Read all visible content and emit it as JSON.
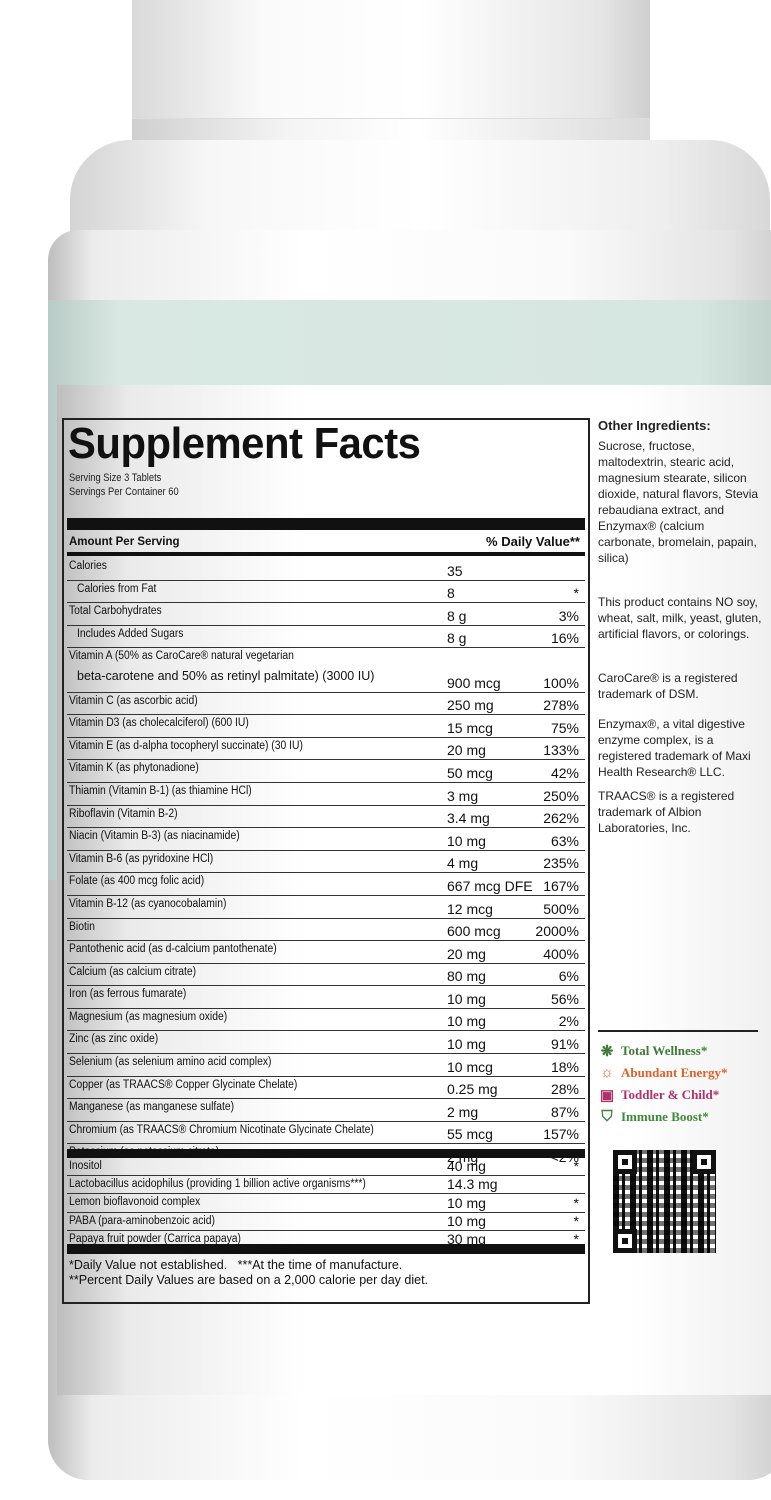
{
  "facts": {
    "title": "Supplement Facts",
    "serving_size": "Serving Size 3 Tablets",
    "servings_per_container": "Servings Per Container 60",
    "amount_header": "Amount Per Serving",
    "dv_header": "% Daily Value**",
    "rows": [
      {
        "name": "Calories",
        "amount": "35",
        "dv": ""
      },
      {
        "name": "Calories from Fat",
        "amount": "8",
        "dv": "*"
      },
      {
        "name": "Total Carbohydrates",
        "amount": "8 g",
        "dv": "3%"
      },
      {
        "name": "Includes Added Sugars",
        "amount": "8 g",
        "dv": "16%"
      },
      {
        "name": "Vitamin A (50% as CaroCare® natural vegetarian",
        "name2": "beta-carotene and 50% as retinyl palmitate) (3000 IU)",
        "amount": "900 mcg",
        "dv": "100%"
      },
      {
        "name": "Vitamin C (as ascorbic acid)",
        "amount": "250 mg",
        "dv": "278%"
      },
      {
        "name": "Vitamin D3 (as cholecalciferol) (600 IU)",
        "amount": "15 mcg",
        "dv": "75%"
      },
      {
        "name": "Vitamin E (as d-alpha tocopheryl succinate) (30 IU)",
        "amount": "20 mg",
        "dv": "133%"
      },
      {
        "name": "Vitamin K (as phytonadione)",
        "amount": "50 mcg",
        "dv": "42%"
      },
      {
        "name": "Thiamin (Vitamin B-1) (as thiamine HCl)",
        "amount": "3 mg",
        "dv": "250%"
      },
      {
        "name": "Riboflavin (Vitamin B-2)",
        "amount": "3.4 mg",
        "dv": "262%"
      },
      {
        "name": "Niacin (Vitamin B-3) (as niacinamide)",
        "amount": "10 mg",
        "dv": "63%"
      },
      {
        "name": "Vitamin B-6 (as pyridoxine HCl)",
        "amount": "4 mg",
        "dv": "235%"
      },
      {
        "name": "Folate (as 400 mcg folic acid)",
        "amount": "667 mcg DFE",
        "dv": "167%"
      },
      {
        "name": "Vitamin B-12 (as cyanocobalamin)",
        "amount": "12 mcg",
        "dv": "500%"
      },
      {
        "name": "Biotin",
        "amount": "600 mcg",
        "dv": "2000%"
      },
      {
        "name": "Pantothenic acid (as d-calcium pantothenate)",
        "amount": "20 mg",
        "dv": "400%"
      },
      {
        "name": "Calcium (as calcium citrate)",
        "amount": "80 mg",
        "dv": "6%"
      },
      {
        "name": "Iron (as ferrous fumarate)",
        "amount": "10 mg",
        "dv": "56%"
      },
      {
        "name": "Magnesium (as magnesium oxide)",
        "amount": "10 mg",
        "dv": "2%"
      },
      {
        "name": "Zinc (as zinc oxide)",
        "amount": "10 mg",
        "dv": "91%"
      },
      {
        "name": "Selenium (as selenium amino acid complex)",
        "amount": "10 mcg",
        "dv": "18%"
      },
      {
        "name": "Copper (as TRAACS® Copper Glycinate Chelate)",
        "amount": "0.25 mg",
        "dv": "28%"
      },
      {
        "name": "Manganese (as manganese sulfate)",
        "amount": "2 mg",
        "dv": "87%"
      },
      {
        "name": "Chromium (as TRAACS® Chromium Nicotinate Glycinate Chelate)",
        "amount": "55 mcg",
        "dv": "157%"
      },
      {
        "name": "Potassium (as potassium citrate)",
        "amount": "2 mg",
        "dv": "<2%"
      }
    ],
    "other_rows": [
      {
        "name": "Inositol",
        "amount": "40 mg",
        "dv": "*"
      },
      {
        "name": "Lactobacillus acidophilus (providing 1 billion active organisms***)",
        "amount": "14.3 mg",
        "dv": ""
      },
      {
        "name": "Lemon bioflavonoid complex",
        "amount": "10 mg",
        "dv": "*"
      },
      {
        "name": "PABA (para-aminobenzoic acid)",
        "amount": "10 mg",
        "dv": "*"
      },
      {
        "name": "Papaya fruit powder (Carrica papaya)",
        "amount": "30 mg",
        "dv": "*"
      }
    ],
    "footnote1": "*Daily Value not established.   ***At the time of manufacture.",
    "footnote2": "**Percent Daily Values are based on a 2,000 calorie per day diet."
  },
  "side": {
    "other_title": "Other Ingredients:",
    "other_text": "Sucrose, fructose, maltodextrin, stearic acid, magnesium stearate, silicon dioxide, natural flavors, Stevia rebaudiana extract, and Enzymax® (calcium carbonate, bromelain, papain, silica)",
    "contains_no": "This product contains NO soy, wheat, salt, milk, yeast, gluten, artificial flavors, or colorings.",
    "carocare": "CaroCare® is a registered trademark of DSM.",
    "enzymax": "Enzymax®, a vital digestive enzyme complex, is a registered trademark of Maxi Health Research® LLC.",
    "traacs": "TRAACS® is a registered trademark of Albion Laboratories, Inc."
  },
  "badges": [
    {
      "label": "Total Wellness*",
      "icon": "sprout-icon",
      "color": "#3f7a3a"
    },
    {
      "label": "Abundant Energy*",
      "icon": "sun-icon",
      "color": "#e0602a"
    },
    {
      "label": "Toddler & Child*",
      "icon": "blocks-icon",
      "color": "#b0306a"
    },
    {
      "label": "Immune Boost*",
      "icon": "shield-icon",
      "color": "#3f8a3a"
    }
  ]
}
